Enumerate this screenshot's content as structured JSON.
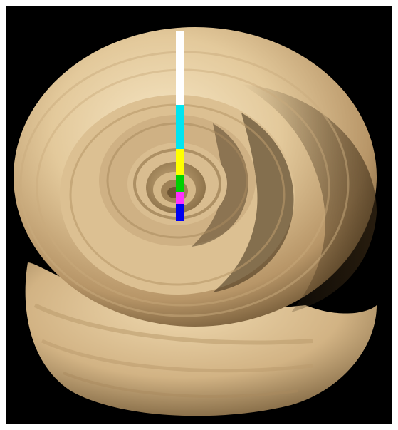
{
  "image": {
    "subject": "shell",
    "background_color": "#000000",
    "shell_colors": {
      "light": "#f1dcb4",
      "mid": "#d6bb8c",
      "dark": "#8c7248",
      "shadow": "#3d2c16"
    }
  },
  "measurement_bar": {
    "segments": [
      {
        "color_name": "white",
        "color": "#ffffff"
      },
      {
        "color_name": "cyan",
        "color": "#00e5f0"
      },
      {
        "color_name": "yellow",
        "color": "#ffff00"
      },
      {
        "color_name": "green",
        "color": "#00d000"
      },
      {
        "color_name": "magenta",
        "color": "#ff30ff"
      },
      {
        "color_name": "blue",
        "color": "#0000f0"
      }
    ]
  }
}
